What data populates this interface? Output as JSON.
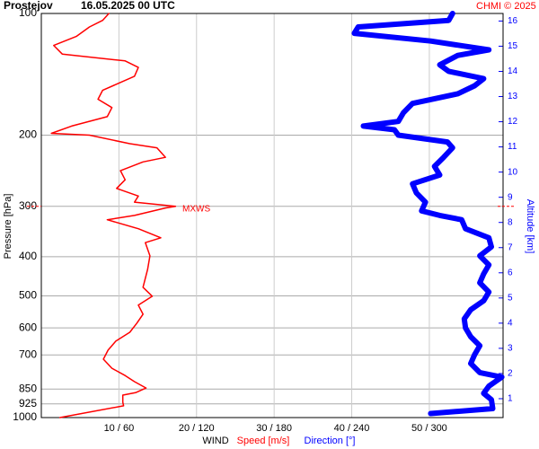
{
  "chart_data": {
    "type": "profile",
    "title": "Prostejov",
    "subtitle": "16.05.2025 00 UTC",
    "credit": "CHMI © 2025",
    "xlabel": "WIND",
    "ylabel": "Pressure [hPa]",
    "y2label": "Altitude [km]",
    "ylog": true,
    "grid": true,
    "ylim": [
      1000,
      100
    ],
    "yticks": [
      100,
      200,
      300,
      400,
      500,
      600,
      700,
      850,
      925,
      1000
    ],
    "xlim": [
      0,
      59.5
    ],
    "x2lim": [
      0,
      357
    ],
    "xticks": [
      {
        "value": 10,
        "label": "10 / 60"
      },
      {
        "value": 20,
        "label": "20 / 120"
      },
      {
        "value": 30,
        "label": "30 / 180"
      },
      {
        "value": 40,
        "label": "40 / 240"
      },
      {
        "value": 50,
        "label": "50 / 300"
      }
    ],
    "y2lim": [
      0.25,
      16.3
    ],
    "y2ticks": [
      1,
      2,
      3,
      4,
      5,
      6,
      7,
      8,
      9,
      10,
      11,
      12,
      13,
      14,
      15,
      16
    ],
    "annotations": [
      {
        "text": "MXWS",
        "pressure": 300
      }
    ],
    "series": [
      {
        "name": "Speed [m/s]",
        "color": "#ff0000",
        "axis": "x",
        "pressure": [
          1000,
          935,
          916,
          880,
          867,
          845,
          815,
          787,
          755,
          717,
          681,
          647,
          615,
          584,
          555,
          527,
          501,
          476,
          430,
          398,
          369,
          359,
          341,
          324,
          316,
          303,
          300,
          293,
          283,
          271,
          258,
          245,
          233,
          227,
          215,
          210,
          200,
          198,
          190,
          180,
          171,
          163,
          155,
          143,
          136,
          131,
          126,
          120,
          114,
          108,
          104,
          100
        ],
        "values": [
          2.4,
          10.6,
          10.5,
          10.5,
          12.2,
          13.5,
          12,
          10.8,
          9.1,
          8,
          8.6,
          9.6,
          11.4,
          12.3,
          13.1,
          12.5,
          14.3,
          13.1,
          13.7,
          14,
          13.4,
          15.4,
          12.5,
          8.5,
          12,
          16,
          17.3,
          12,
          12.5,
          9.7,
          10.8,
          10.2,
          13.1,
          16,
          14.9,
          11.4,
          6.2,
          1.3,
          3.9,
          8.5,
          9.1,
          7.3,
          7.9,
          12,
          12.5,
          10.8,
          2.7,
          1.6,
          4.5,
          6.2,
          7.9,
          8.7
        ]
      },
      {
        "name": "Direction [°]",
        "color": "#0000ff",
        "axis": "x2",
        "pressure": [
          977,
          950,
          903,
          871,
          836,
          794,
          774,
          735,
          699,
          664,
          631,
          600,
          570,
          541,
          514,
          489,
          464,
          441,
          419,
          398,
          378,
          359,
          341,
          324,
          316,
          308,
          293,
          278,
          264,
          251,
          239,
          227,
          215,
          208,
          200,
          194,
          190,
          185,
          176,
          167,
          158,
          151,
          145,
          139,
          134,
          127,
          123,
          117,
          112,
          108,
          104,
          100
        ],
        "values": [
          301,
          349,
          348,
          342,
          346,
          356,
          339,
          332,
          335,
          339,
          332,
          328,
          327,
          332,
          342,
          346,
          339,
          342,
          346,
          339,
          348,
          346,
          328,
          325,
          308,
          294,
          297,
          290,
          287,
          308,
          304,
          311,
          318,
          314,
          276,
          273,
          249,
          276,
          280,
          287,
          322,
          335,
          342,
          315,
          308,
          322,
          346,
          301,
          242,
          245,
          315,
          318
        ]
      }
    ]
  }
}
